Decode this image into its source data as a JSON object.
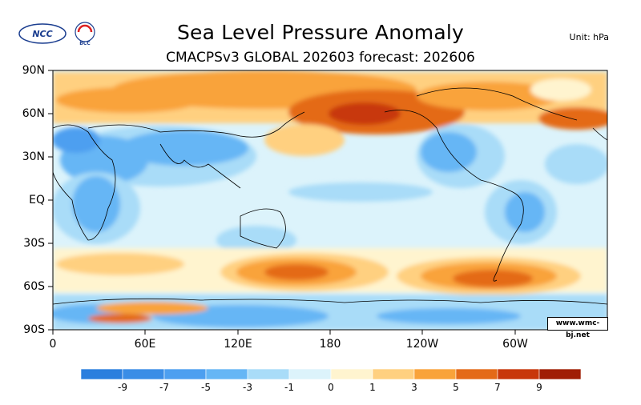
{
  "header": {
    "title": "Sea Level Pressure Anomaly",
    "subtitle": "CMACPSv3 GLOBAL 202603 forecast: 202606",
    "unit": "Unit:  hPa",
    "logo_left_text": "NCC",
    "logo_right_text": "BCC"
  },
  "map": {
    "lat_labels": [
      "90N",
      "60N",
      "30N",
      "EQ",
      "30S",
      "60S",
      "90S"
    ],
    "lon_labels": [
      "0",
      "60E",
      "120E",
      "180",
      "120W",
      "60W"
    ],
    "watermark": "www.wmc-bj.net"
  },
  "colorbar": {
    "colors": [
      "#2b7fde",
      "#3a8de6",
      "#4d9ff0",
      "#66b6f5",
      "#a9dcf8",
      "#dcf3fb",
      "#fff4cf",
      "#ffd080",
      "#f9a33a",
      "#e46a18",
      "#c8370b",
      "#a01e05"
    ],
    "labels": [
      "-9",
      "-7",
      "-5",
      "-3",
      "-1",
      "0",
      "1",
      "3",
      "5",
      "7",
      "9"
    ]
  }
}
